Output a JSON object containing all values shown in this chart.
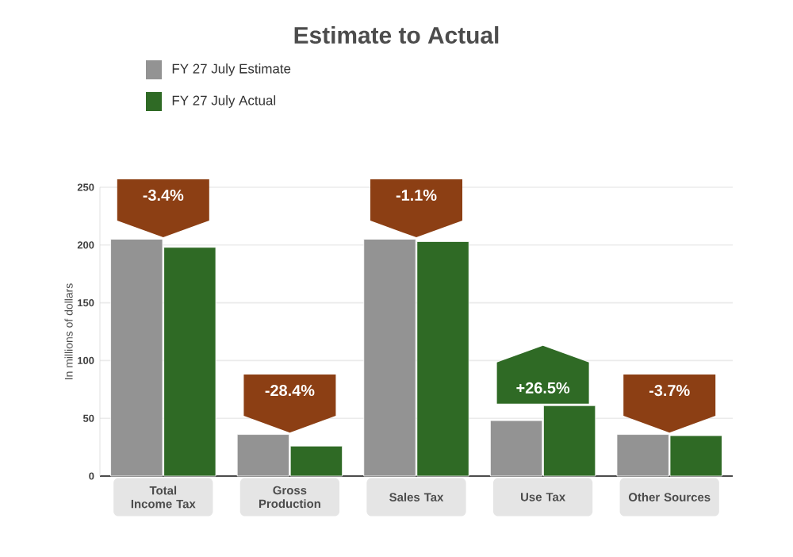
{
  "chart_data": {
    "type": "bar",
    "title": "Estimate to Actual",
    "ylabel": "In millions of dollars",
    "categories": [
      "Total Income Tax",
      "Gross Production",
      "Sales Tax",
      "Use Tax",
      "Other Sources"
    ],
    "series": [
      {
        "name": "FY 27 July Estimate",
        "color": "#939393",
        "values": [
          205,
          36,
          205,
          48,
          36
        ]
      },
      {
        "name": "FY 27 July Actual",
        "color": "#2f6a25",
        "values": [
          198,
          26,
          203,
          61,
          35
        ]
      }
    ],
    "ylim": [
      0,
      250
    ],
    "yticks": [
      0,
      50,
      100,
      150,
      200,
      250
    ],
    "grid": "y",
    "legend": "top left",
    "annotations": [
      {
        "text": "-3.4%",
        "x": "Total Income Tax",
        "y": 205
      },
      {
        "text": "-28.4%",
        "x": "Gross Production",
        "y": 36
      },
      {
        "text": "-1.1%",
        "x": "Sales Tax",
        "y": 205
      },
      {
        "text": "+26.5%",
        "x": "Use Tax",
        "y": 61
      },
      {
        "text": "-3.7%",
        "x": "Other Sources",
        "y": 36
      }
    ]
  }
}
